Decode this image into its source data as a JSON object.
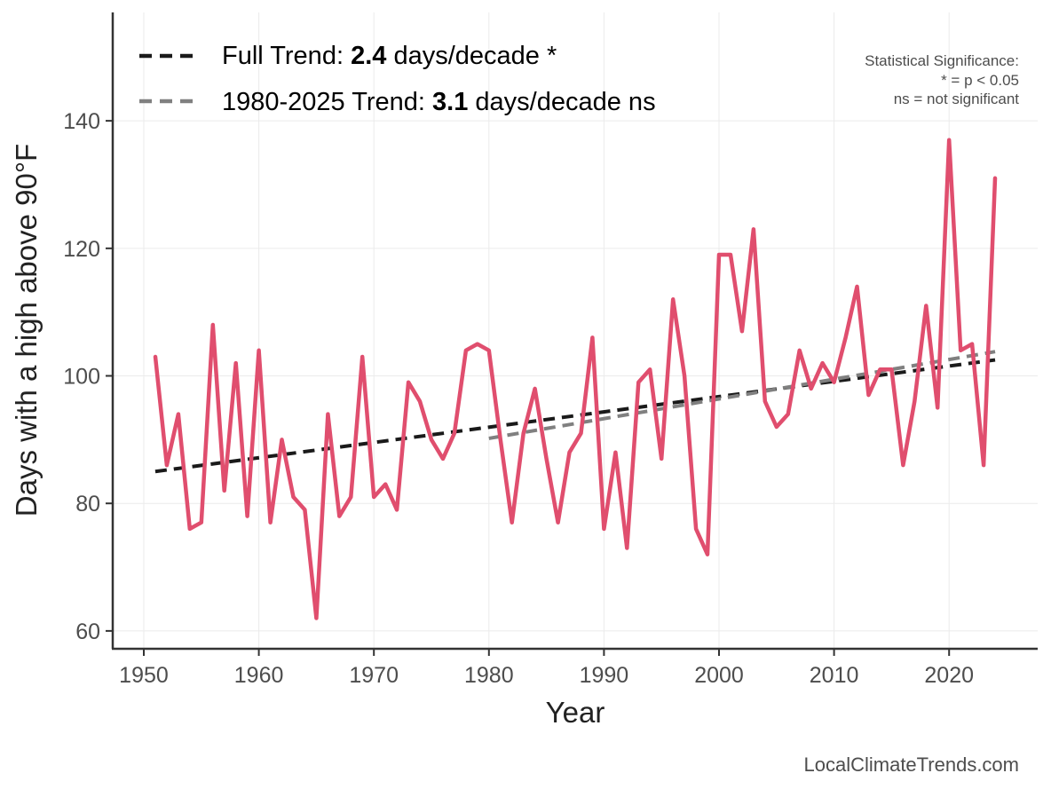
{
  "chart_data": {
    "type": "line",
    "xlabel": "Year",
    "ylabel": "Days with a high above 90°F",
    "xlim": [
      1947.3,
      2027.7
    ],
    "ylim": [
      57.2,
      157
    ],
    "x_ticks": [
      1950,
      1960,
      1970,
      1980,
      1990,
      2000,
      2010,
      2020
    ],
    "y_ticks": [
      60,
      80,
      100,
      120,
      140
    ],
    "grid": true,
    "legend_position": "top-left",
    "series": [
      {
        "color": "#e04e6e",
        "x": [
          1951,
          1952,
          1953,
          1954,
          1955,
          1956,
          1957,
          1958,
          1959,
          1960,
          1961,
          1962,
          1963,
          1964,
          1965,
          1966,
          1967,
          1968,
          1969,
          1970,
          1971,
          1972,
          1973,
          1974,
          1975,
          1976,
          1977,
          1978,
          1979,
          1980,
          1981,
          1982,
          1983,
          1984,
          1985,
          1986,
          1987,
          1988,
          1989,
          1990,
          1991,
          1992,
          1993,
          1994,
          1995,
          1996,
          1997,
          1998,
          1999,
          2000,
          2001,
          2002,
          2003,
          2004,
          2005,
          2006,
          2007,
          2008,
          2009,
          2010,
          2011,
          2012,
          2013,
          2014,
          2015,
          2016,
          2017,
          2018,
          2019,
          2020,
          2021,
          2022,
          2023,
          2024
        ],
        "values": [
          103,
          86,
          94,
          76,
          77,
          108,
          82,
          102,
          78,
          104,
          77,
          90,
          81,
          79,
          62,
          94,
          78,
          81,
          103,
          81,
          83,
          79,
          99,
          96,
          90,
          87,
          91,
          104,
          105,
          104,
          90,
          77,
          91,
          98,
          87,
          77,
          88,
          91,
          106,
          76,
          88,
          73,
          99,
          101,
          87,
          112,
          100,
          76,
          72,
          119,
          119,
          107,
          123,
          96,
          92,
          94,
          104,
          98,
          102,
          99,
          106,
          114,
          97,
          101,
          101,
          86,
          96,
          111,
          95,
          137,
          104,
          105,
          86,
          131
        ]
      }
    ],
    "trend_lines": [
      {
        "legend_text": "Full Trend:",
        "legend_value": "2.4",
        "legend_suffix": "days/decade *",
        "color": "#1a1a1a",
        "x": [
          1951,
          2024
        ],
        "y": [
          85.0,
          102.5
        ]
      },
      {
        "legend_text": "1980-2025 Trend:",
        "legend_value": "3.1",
        "legend_suffix": "days/decade ns",
        "color": "#808080",
        "x": [
          1980,
          2024
        ],
        "y": [
          90.2,
          103.8
        ]
      }
    ],
    "annotation": {
      "line1": "Statistical Significance:",
      "line2": "* = p < 0.05",
      "line3": "ns = not significant"
    },
    "credit": "LocalClimateTrends.com"
  }
}
